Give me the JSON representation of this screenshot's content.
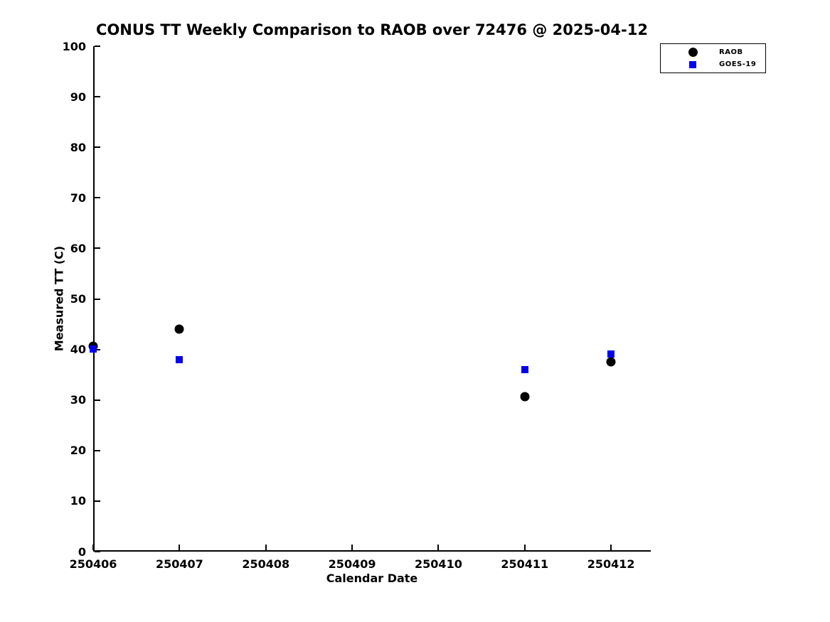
{
  "chart_data": {
    "type": "scatter",
    "title": "CONUS TT Weekly Comparison to RAOB over 72476 @ 2025-04-12",
    "xlabel": "Calendar Date",
    "ylabel": "Measured TT (C)",
    "x_tick_labels": [
      "250406",
      "250407",
      "250408",
      "250409",
      "250410",
      "250411",
      "250412"
    ],
    "y_tick_labels": [
      "0",
      "10",
      "20",
      "30",
      "40",
      "50",
      "60",
      "70",
      "80",
      "90",
      "100"
    ],
    "xlim": [
      0,
      6.46
    ],
    "ylim": [
      0,
      100
    ],
    "grid": false,
    "background_color": "#ffffff",
    "axis_color": "#000000",
    "legend_position": "top-right-outside",
    "series": [
      {
        "name": "RAOB",
        "marker": "circle",
        "color": "#000000",
        "points": [
          {
            "date": "250406",
            "y": 40.6
          },
          {
            "date": "250407",
            "y": 44.0
          },
          {
            "date": "250411",
            "y": 30.7
          },
          {
            "date": "250412",
            "y": 37.5
          }
        ]
      },
      {
        "name": "GOES-19",
        "marker": "square",
        "color": "#0000ee",
        "points": [
          {
            "date": "250406",
            "y": 40.1
          },
          {
            "date": "250407",
            "y": 38.0
          },
          {
            "date": "250411",
            "y": 36.0
          },
          {
            "date": "250412",
            "y": 39.1
          }
        ]
      }
    ]
  }
}
